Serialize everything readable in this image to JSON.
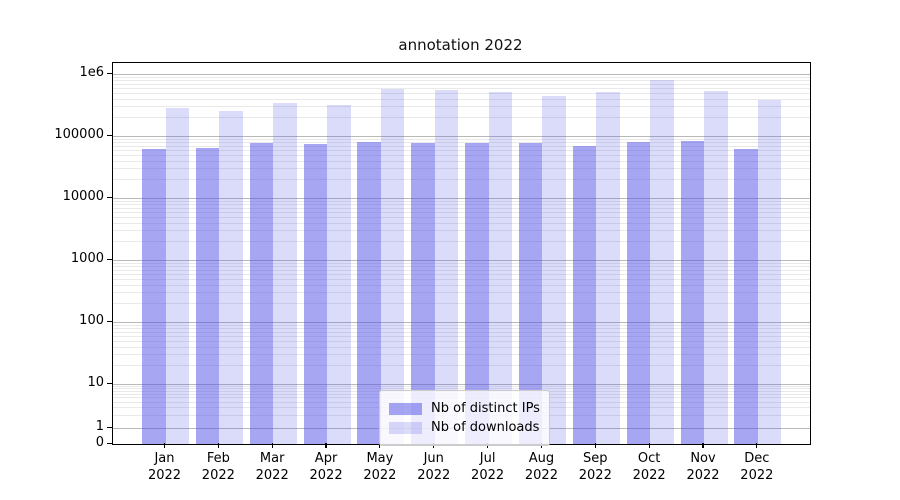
{
  "chart_data": {
    "type": "bar",
    "title": "annotation 2022",
    "categories": [
      "Jan",
      "Feb",
      "Mar",
      "Apr",
      "May",
      "Jun",
      "Jul",
      "Aug",
      "Sep",
      "Oct",
      "Nov",
      "Dec"
    ],
    "x_tick_year": "2022",
    "series": [
      {
        "name": "Nb of distinct IPs",
        "color": "rgba(77,77,229,0.5)",
        "values": [
          61000,
          64000,
          78000,
          75000,
          81000,
          78000,
          78000,
          78000,
          70000,
          80000,
          84000,
          62000
        ]
      },
      {
        "name": "Nb of downloads",
        "color": "rgba(77,77,229,0.2)",
        "values": [
          285000,
          255000,
          340000,
          315000,
          575000,
          550000,
          515000,
          440000,
          505000,
          800000,
          540000,
          375000
        ]
      }
    ],
    "yscale": "symlog",
    "xlabel": "",
    "ylabel": "",
    "ytick_labels": [
      "1e6",
      "100000",
      "10000",
      "1000",
      "100",
      "10",
      "1",
      "0"
    ],
    "ytick_values": [
      1000000,
      100000,
      10000,
      1000,
      100,
      10,
      1,
      0
    ],
    "ylim": [
      0,
      1500000
    ],
    "grid": true,
    "legend_position": "lower center",
    "colors": {
      "bar_base": "#4d4de5",
      "axis": "#000000",
      "grid_major": "#b9b9b9",
      "grid_minor": "#e9e9e9",
      "background": "#ffffff"
    }
  }
}
